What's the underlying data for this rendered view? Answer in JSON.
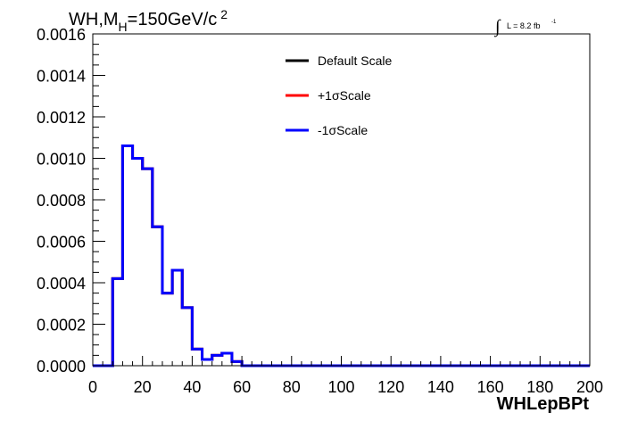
{
  "chart_data": {
    "type": "line",
    "title": {
      "prefix": "WH,M",
      "subscript": "H",
      "main": "=150GeV/c",
      "superscript": "2"
    },
    "lumi": {
      "integral": "∫",
      "text": "L = 8.2 fb",
      "superscript": "-1"
    },
    "xlabel": "WHLepBPt",
    "ylabel": "",
    "xlim": [
      0,
      200
    ],
    "ylim": [
      0,
      0.0016
    ],
    "x_ticks": [
      0,
      20,
      40,
      60,
      80,
      100,
      120,
      140,
      160,
      180,
      200
    ],
    "x_tick_labels": [
      "0",
      "20",
      "40",
      "60",
      "80",
      "100",
      "120",
      "140",
      "160",
      "180",
      "200"
    ],
    "y_ticks": [
      0,
      0.0002,
      0.0004,
      0.0006,
      0.0008,
      0.001,
      0.0012,
      0.0014,
      0.0016
    ],
    "y_tick_labels": [
      "0.0000",
      "0.0002",
      "0.0004",
      "0.0006",
      "0.0008",
      "0.0010",
      "0.0012",
      "0.0014",
      "0.0016"
    ],
    "bin_edges": [
      0,
      4,
      8,
      12,
      16,
      20,
      24,
      28,
      32,
      36,
      40,
      44,
      48,
      52,
      56,
      60,
      64,
      68,
      72,
      76,
      80,
      84,
      88,
      92,
      96,
      100,
      104,
      108,
      112,
      116,
      120,
      124,
      128,
      132,
      136,
      140,
      144,
      148,
      152,
      156,
      160,
      164,
      168,
      172,
      176,
      180,
      184,
      188,
      192,
      196,
      200
    ],
    "series": [
      {
        "name": "Default Scale",
        "color": "#000000",
        "values": [
          0,
          0,
          0.00042,
          0.00106,
          0.001,
          0.00095,
          0.00067,
          0.00035,
          0.00046,
          0.00028,
          8e-05,
          3e-05,
          5e-05,
          6e-05,
          2e-05,
          0,
          0,
          0,
          0,
          0,
          0,
          0,
          0,
          0,
          0,
          0,
          0,
          0,
          0,
          0,
          0,
          0,
          0,
          0,
          0,
          0,
          0,
          0,
          0,
          0,
          0,
          0,
          0,
          0,
          0,
          0,
          0,
          0,
          0,
          0
        ]
      },
      {
        "name": "+1σScale",
        "color": "#ff0000",
        "values": [
          0,
          0,
          0.00042,
          0.00106,
          0.001,
          0.00095,
          0.00067,
          0.00035,
          0.00046,
          0.00028,
          8e-05,
          3e-05,
          5e-05,
          6e-05,
          2e-05,
          0,
          0,
          0,
          0,
          0,
          0,
          0,
          0,
          0,
          0,
          0,
          0,
          0,
          0,
          0,
          0,
          0,
          0,
          0,
          0,
          0,
          0,
          0,
          0,
          0,
          0,
          0,
          0,
          0,
          0,
          0,
          0,
          0,
          0,
          0
        ]
      },
      {
        "name": "-1σScale",
        "color": "#0000ff",
        "values": [
          0,
          0,
          0.00042,
          0.00106,
          0.001,
          0.00095,
          0.00067,
          0.00035,
          0.00046,
          0.00028,
          8e-05,
          3e-05,
          5e-05,
          6e-05,
          2e-05,
          0,
          0,
          0,
          0,
          0,
          0,
          0,
          0,
          0,
          0,
          0,
          0,
          0,
          0,
          0,
          0,
          0,
          0,
          0,
          0,
          0,
          0,
          0,
          0,
          0,
          0,
          0,
          0,
          0,
          0,
          0,
          0,
          0,
          0,
          0
        ]
      }
    ],
    "legend_position": "top-right",
    "grid": false
  }
}
